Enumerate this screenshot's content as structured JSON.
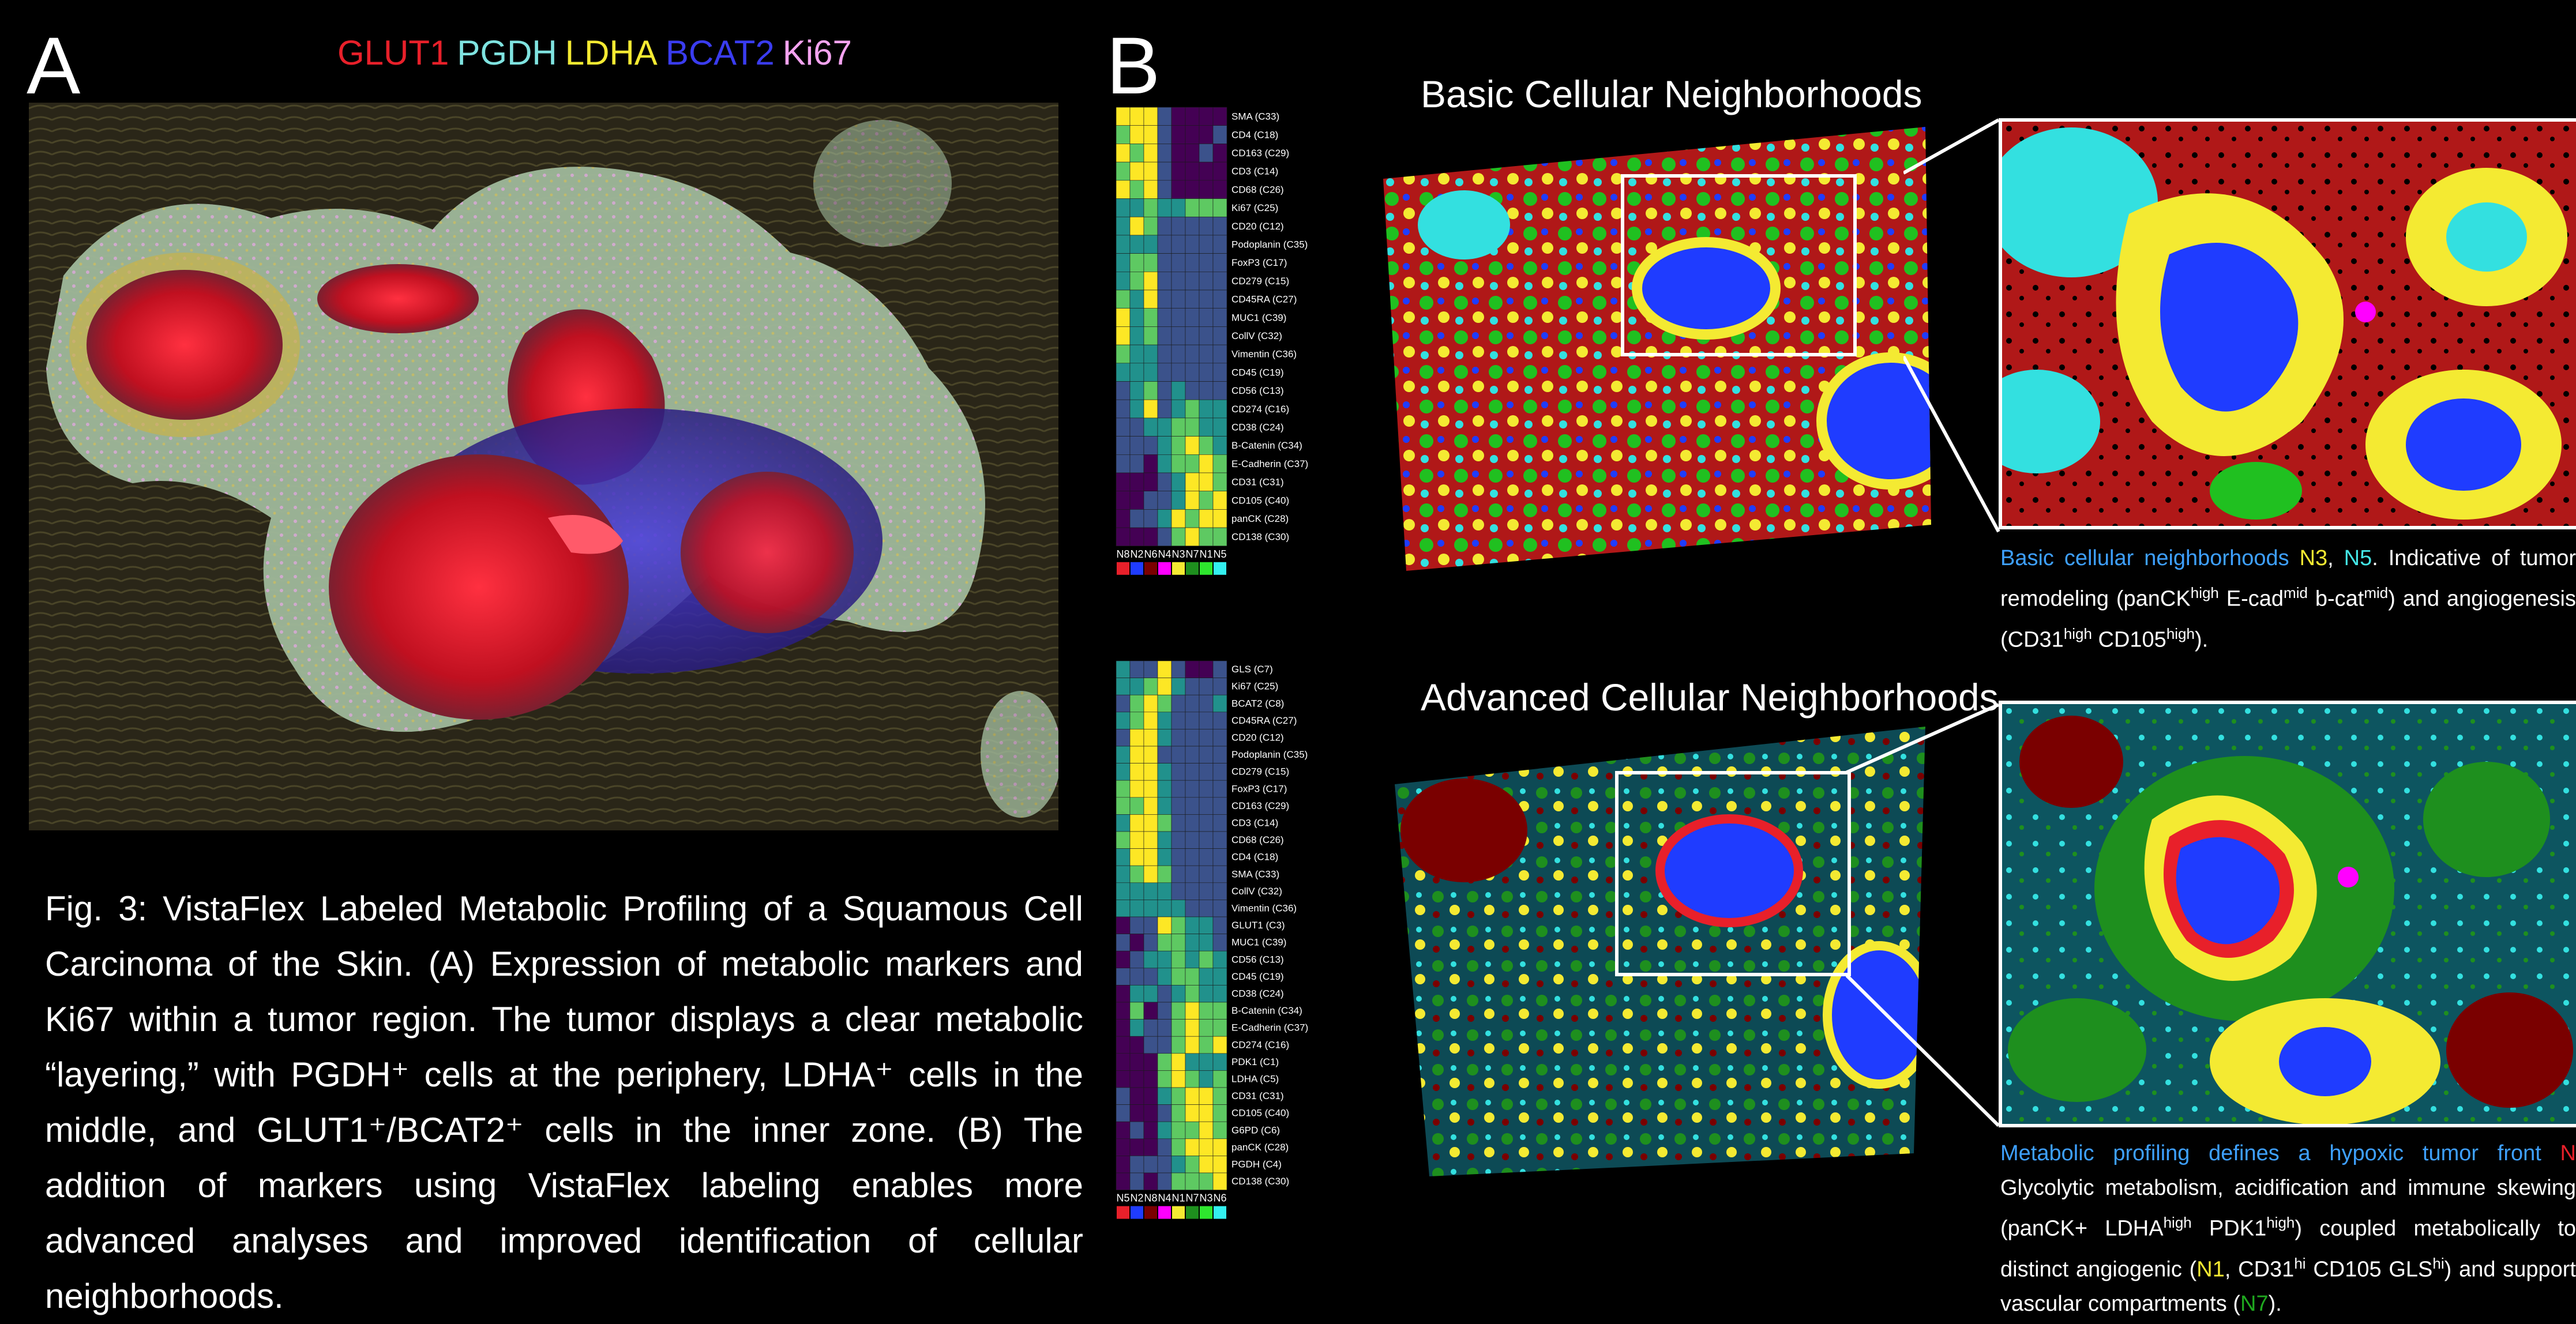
{
  "colors": {
    "background": "#000000",
    "GLUT1": "#e8202a",
    "PGDH": "#7fe3e0",
    "LDHA": "#f4ea32",
    "BCAT2": "#3a3cf0",
    "Ki67": "#f4a3f0",
    "caption_highlight_blue": "#3ea0ff",
    "caption_highlight_yellow": "#f4ea32",
    "caption_highlight_cyan": "#44e6e6",
    "caption_highlight_green": "#1fa81f",
    "viridis": [
      "#440154",
      "#3b528b",
      "#21918c",
      "#5ec962",
      "#fde725"
    ]
  },
  "panel_a": {
    "letter": "A",
    "legend": [
      {
        "name": "GLUT1",
        "color": "#e8202a"
      },
      {
        "name": "PGDH",
        "color": "#7fe3e0"
      },
      {
        "name": "LDHA",
        "color": "#f4ea32"
      },
      {
        "name": "BCAT2",
        "color": "#3a3cf0"
      },
      {
        "name": "Ki67",
        "color": "#f4a3f0"
      }
    ]
  },
  "panel_b": {
    "letter": "B",
    "basic": {
      "title": "Basic Cellular Neighborhoods",
      "caption_runs": [
        {
          "text": "Basic cellular neighborhoods ",
          "color": "#3ea0ff"
        },
        {
          "text": "N3",
          "color": "#f4ea32"
        },
        {
          "text": ", ",
          "color": "#ffffff"
        },
        {
          "text": "N5",
          "color": "#44e6e6"
        },
        {
          "text": ". Indicative of tumor remodeling (panCK",
          "color": "#ffffff"
        },
        {
          "text": "high",
          "color": "#ffffff",
          "sup": true
        },
        {
          "text": " E-cad",
          "color": "#ffffff"
        },
        {
          "text": "mid",
          "color": "#ffffff",
          "sup": true
        },
        {
          "text": " b-cat",
          "color": "#ffffff"
        },
        {
          "text": "mid",
          "color": "#ffffff",
          "sup": true
        },
        {
          "text": ") and angiogenesis (CD31",
          "color": "#ffffff"
        },
        {
          "text": "high",
          "color": "#ffffff",
          "sup": true
        },
        {
          "text": " CD105",
          "color": "#ffffff"
        },
        {
          "text": "high",
          "color": "#ffffff",
          "sup": true
        },
        {
          "text": ").",
          "color": "#ffffff"
        }
      ]
    },
    "advanced": {
      "title": "Advanced Cellular Neighborhoods",
      "caption_runs": [
        {
          "text": "Metabolic profiling defines a hypoxic tumor front ",
          "color": "#3ea0ff"
        },
        {
          "text": "N",
          "color": "#e8202a"
        },
        {
          "text": " Glycolytic metabolism, acidification and immune skewing (panCK+ LDHA",
          "color": "#ffffff"
        },
        {
          "text": "high",
          "color": "#ffffff",
          "sup": true
        },
        {
          "text": " PDK1",
          "color": "#ffffff"
        },
        {
          "text": "high",
          "color": "#ffffff",
          "sup": true
        },
        {
          "text": ") coupled metabolically to distinct angiogenic (",
          "color": "#ffffff"
        },
        {
          "text": "N1",
          "color": "#f4ea32"
        },
        {
          "text": ", CD31",
          "color": "#ffffff"
        },
        {
          "text": "hi",
          "color": "#ffffff",
          "sup": true
        },
        {
          "text": " CD105 GLS",
          "color": "#ffffff"
        },
        {
          "text": "hi",
          "color": "#ffffff",
          "sup": true
        },
        {
          "text": ") and support vascular compartments (",
          "color": "#ffffff"
        },
        {
          "text": "N7",
          "color": "#1fa81f"
        },
        {
          "text": ").",
          "color": "#ffffff"
        }
      ]
    }
  },
  "figure_caption": "Fig. 3: VistaFlex Labeled Metabolic Profiling of a Squamous Cell Carcinoma of the Skin. (A) Expression of metabolic markers and Ki67 within a tumor region. The tumor displays a clear metabolic “layering,” with PGDH⁺ cells at the periphery, LDHA⁺ cells in the middle, and GLUT1⁺/BCAT2⁺ cells in the inner zone. (B) The addition of markers using VistaFlex labeling enables more advanced analyses and improved identification of cellular neighborhoods.",
  "chart_data": [
    {
      "type": "heatmap",
      "title": "",
      "columns": [
        "N8",
        "N2",
        "N6",
        "N4",
        "N3",
        "N7",
        "N1",
        "N5"
      ],
      "column_colors": [
        "#e8202a",
        "#1f3cff",
        "#7a0000",
        "#ff00ff",
        "#f4ea32",
        "#1e8f1e",
        "#2ee62e",
        "#33f0f0"
      ],
      "rows": [
        "SMA (C33)",
        "CD4 (C18)",
        "CD163 (C29)",
        "CD3 (C14)",
        "CD68 (C26)",
        "Ki67 (C25)",
        "CD20 (C12)",
        "Podoplanin (C35)",
        "FoxP3 (C17)",
        "CD279 (C15)",
        "CD45RA (C27)",
        "MUC1 (C39)",
        "CollV (C32)",
        "Vimentin (C36)",
        "CD45 (C19)",
        "CD56 (C13)",
        "CD274 (C16)",
        "CD38 (C24)",
        "B-Catenin (C34)",
        "E-Cadherin (C37)",
        "CD31 (C31)",
        "CD105 (C40)",
        "panCK (C28)",
        "CD138 (C30)"
      ],
      "values": [
        [
          4,
          4,
          4,
          1,
          0,
          0,
          0,
          0
        ],
        [
          3,
          4,
          4,
          1,
          0,
          0,
          0,
          1
        ],
        [
          4,
          3,
          4,
          1,
          0,
          0,
          1,
          0
        ],
        [
          3,
          4,
          4,
          1,
          0,
          0,
          0,
          0
        ],
        [
          4,
          3,
          4,
          1,
          0,
          0,
          0,
          0
        ],
        [
          2,
          2,
          3,
          2,
          2,
          3,
          3,
          3
        ],
        [
          2,
          4,
          3,
          1,
          1,
          1,
          1,
          1
        ],
        [
          2,
          2,
          2,
          1,
          1,
          1,
          1,
          1
        ],
        [
          2,
          3,
          3,
          1,
          1,
          1,
          1,
          1
        ],
        [
          2,
          3,
          4,
          1,
          1,
          1,
          1,
          1
        ],
        [
          3,
          2,
          4,
          1,
          1,
          1,
          1,
          1
        ],
        [
          4,
          2,
          3,
          1,
          1,
          1,
          1,
          1
        ],
        [
          4,
          2,
          3,
          1,
          1,
          1,
          1,
          1
        ],
        [
          3,
          2,
          2,
          1,
          1,
          1,
          1,
          1
        ],
        [
          2,
          2,
          2,
          1,
          1,
          1,
          1,
          1
        ],
        [
          1,
          2,
          3,
          1,
          2,
          1,
          1,
          1
        ],
        [
          1,
          2,
          4,
          1,
          2,
          3,
          2,
          2
        ],
        [
          1,
          1,
          2,
          2,
          3,
          3,
          2,
          2
        ],
        [
          1,
          1,
          1,
          2,
          3,
          4,
          3,
          2
        ],
        [
          1,
          1,
          0,
          2,
          3,
          3,
          4,
          3
        ],
        [
          0,
          0,
          0,
          1,
          2,
          4,
          4,
          3
        ],
        [
          0,
          0,
          1,
          1,
          2,
          4,
          3,
          4
        ],
        [
          0,
          1,
          1,
          2,
          4,
          3,
          4,
          4
        ],
        [
          0,
          0,
          0,
          1,
          3,
          4,
          3,
          3
        ]
      ],
      "colormap": "viridis"
    },
    {
      "type": "heatmap",
      "title": "",
      "columns": [
        "N5",
        "N2",
        "N8",
        "N4",
        "N1",
        "N7",
        "N3",
        "N6"
      ],
      "column_colors": [
        "#e8202a",
        "#1f3cff",
        "#7a0000",
        "#ff00ff",
        "#f4ea32",
        "#1e8f1e",
        "#2ee62e",
        "#33f0f0"
      ],
      "rows": [
        "GLS (C7)",
        "Ki67 (C25)",
        "BCAT2 (C8)",
        "CD45RA (C27)",
        "CD20 (C12)",
        "Podoplanin (C35)",
        "CD279 (C15)",
        "FoxP3 (C17)",
        "CD163 (C29)",
        "CD3 (C14)",
        "CD68 (C26)",
        "CD4 (C18)",
        "SMA (C33)",
        "CollV (C32)",
        "Vimentin (C36)",
        "GLUT1 (C3)",
        "MUC1 (C39)",
        "CD56 (C13)",
        "CD45 (C19)",
        "CD38 (C24)",
        "B-Catenin (C34)",
        "E-Cadherin (C37)",
        "CD274 (C16)",
        "PDK1 (C1)",
        "LDHA (C5)",
        "CD31 (C31)",
        "CD105 (C40)",
        "G6PD (C6)",
        "panCK (C28)",
        "PGDH (C4)",
        "CD138 (C30)"
      ],
      "values": [
        [
          2,
          1,
          1,
          4,
          1,
          0,
          0,
          1
        ],
        [
          2,
          2,
          3,
          4,
          2,
          1,
          1,
          1
        ],
        [
          1,
          3,
          4,
          3,
          1,
          1,
          1,
          2
        ],
        [
          2,
          3,
          4,
          2,
          1,
          1,
          1,
          1
        ],
        [
          1,
          4,
          4,
          2,
          1,
          1,
          1,
          1
        ],
        [
          2,
          4,
          4,
          1,
          1,
          1,
          1,
          1
        ],
        [
          2,
          4,
          4,
          2,
          1,
          1,
          1,
          1
        ],
        [
          3,
          4,
          4,
          2,
          1,
          1,
          1,
          1
        ],
        [
          3,
          3,
          4,
          2,
          1,
          1,
          1,
          1
        ],
        [
          2,
          4,
          4,
          3,
          1,
          1,
          1,
          1
        ],
        [
          3,
          4,
          4,
          2,
          1,
          1,
          1,
          1
        ],
        [
          2,
          4,
          4,
          2,
          1,
          1,
          1,
          1
        ],
        [
          2,
          3,
          4,
          3,
          1,
          1,
          1,
          1
        ],
        [
          2,
          2,
          2,
          2,
          1,
          1,
          1,
          1
        ],
        [
          2,
          2,
          2,
          2,
          2,
          1,
          1,
          1
        ],
        [
          0,
          1,
          1,
          4,
          3,
          2,
          2,
          1
        ],
        [
          1,
          0,
          1,
          3,
          3,
          2,
          2,
          1
        ],
        [
          0,
          1,
          2,
          2,
          3,
          2,
          3,
          2
        ],
        [
          1,
          1,
          1,
          2,
          3,
          3,
          2,
          2
        ],
        [
          0,
          2,
          2,
          1,
          2,
          3,
          2,
          2
        ],
        [
          0,
          3,
          0,
          1,
          3,
          4,
          3,
          3
        ],
        [
          0,
          2,
          1,
          1,
          3,
          4,
          3,
          3
        ],
        [
          0,
          0,
          1,
          1,
          3,
          4,
          3,
          4
        ],
        [
          0,
          0,
          0,
          3,
          4,
          2,
          2,
          2
        ],
        [
          0,
          0,
          0,
          3,
          4,
          3,
          2,
          3
        ],
        [
          1,
          0,
          0,
          2,
          3,
          4,
          4,
          3
        ],
        [
          1,
          0,
          0,
          1,
          3,
          4,
          4,
          3
        ],
        [
          0,
          1,
          0,
          2,
          3,
          3,
          4,
          3
        ],
        [
          0,
          0,
          0,
          1,
          3,
          4,
          4,
          4
        ],
        [
          0,
          1,
          1,
          1,
          2,
          3,
          4,
          4
        ],
        [
          0,
          1,
          0,
          1,
          3,
          3,
          3,
          4
        ]
      ],
      "colormap": "viridis"
    }
  ]
}
